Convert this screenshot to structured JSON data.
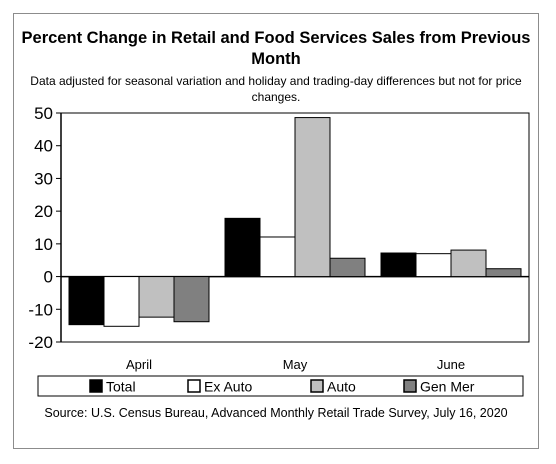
{
  "chart_data": {
    "type": "bar",
    "title": "Percent Change in Retail and Food Services Sales from Previous Month",
    "subtitle": "Data adjusted for seasonal variation and holiday and trading-day differences but not for price changes.",
    "categories": [
      "April",
      "May",
      "June"
    ],
    "series": [
      {
        "name": "Total",
        "values": [
          -14.7,
          17.8,
          7.2
        ],
        "color": "#000000"
      },
      {
        "name": "Ex Auto",
        "values": [
          -15.2,
          12.1,
          7.0
        ],
        "color": "#ffffff"
      },
      {
        "name": "Auto",
        "values": [
          -12.4,
          48.6,
          8.1
        ],
        "color": "#c0c0c0"
      },
      {
        "name": "Gen Mer",
        "values": [
          -13.8,
          5.6,
          2.4
        ],
        "color": "#808080"
      }
    ],
    "ylim": [
      -20,
      50
    ],
    "yticks": [
      50,
      40,
      30,
      20,
      10,
      0,
      -10,
      -20
    ],
    "grid": false,
    "legend_position": "bottom",
    "xlabel": "",
    "ylabel": ""
  },
  "source": "Source: U.S. Census Bureau, Advanced Monthly Retail Trade Survey, July 16, 2020"
}
